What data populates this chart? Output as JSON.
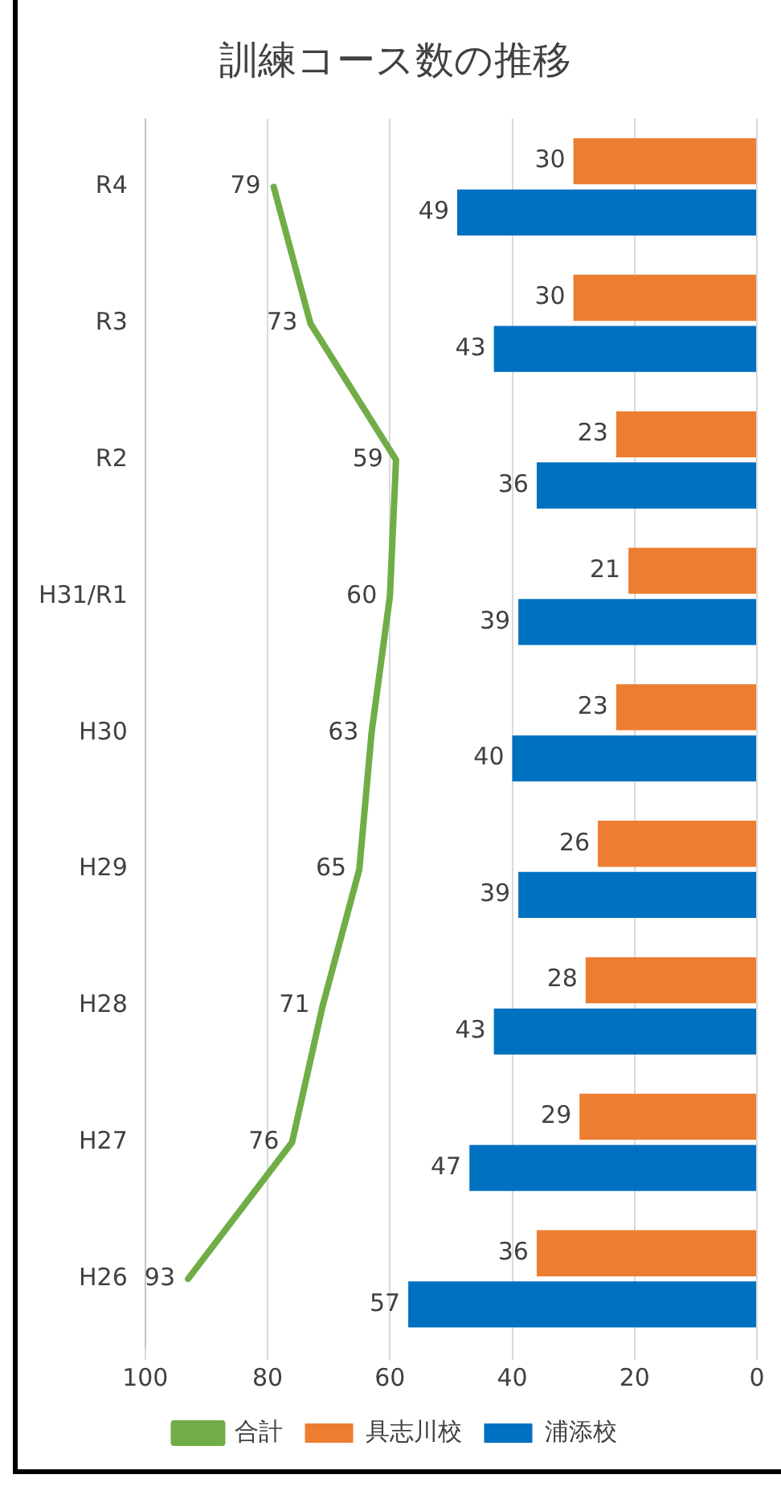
{
  "chart_data": {
    "type": "bar",
    "orientation": "horizontal",
    "title": "訓練コース数の推移",
    "categories": [
      "R4",
      "R3",
      "R2",
      "H31/R1",
      "H30",
      "H29",
      "H28",
      "H27",
      "H26"
    ],
    "series": [
      {
        "name": "具志川校",
        "color": "#ed7d31",
        "values": [
          30,
          30,
          23,
          21,
          23,
          26,
          28,
          29,
          36
        ]
      },
      {
        "name": "浦添校",
        "color": "#0070c0",
        "values": [
          49,
          43,
          36,
          39,
          40,
          39,
          43,
          47,
          57
        ]
      },
      {
        "name": "合計",
        "type": "line",
        "color": "#70ad47",
        "values": [
          79,
          73,
          59,
          60,
          63,
          65,
          71,
          76,
          93
        ]
      }
    ],
    "xlim": [
      100,
      0
    ],
    "xticks": [
      100,
      80,
      60,
      40,
      20,
      0
    ],
    "grid": "x",
    "legend": "bottom",
    "data_labels": true,
    "marker": "none",
    "line_style": "solid"
  }
}
